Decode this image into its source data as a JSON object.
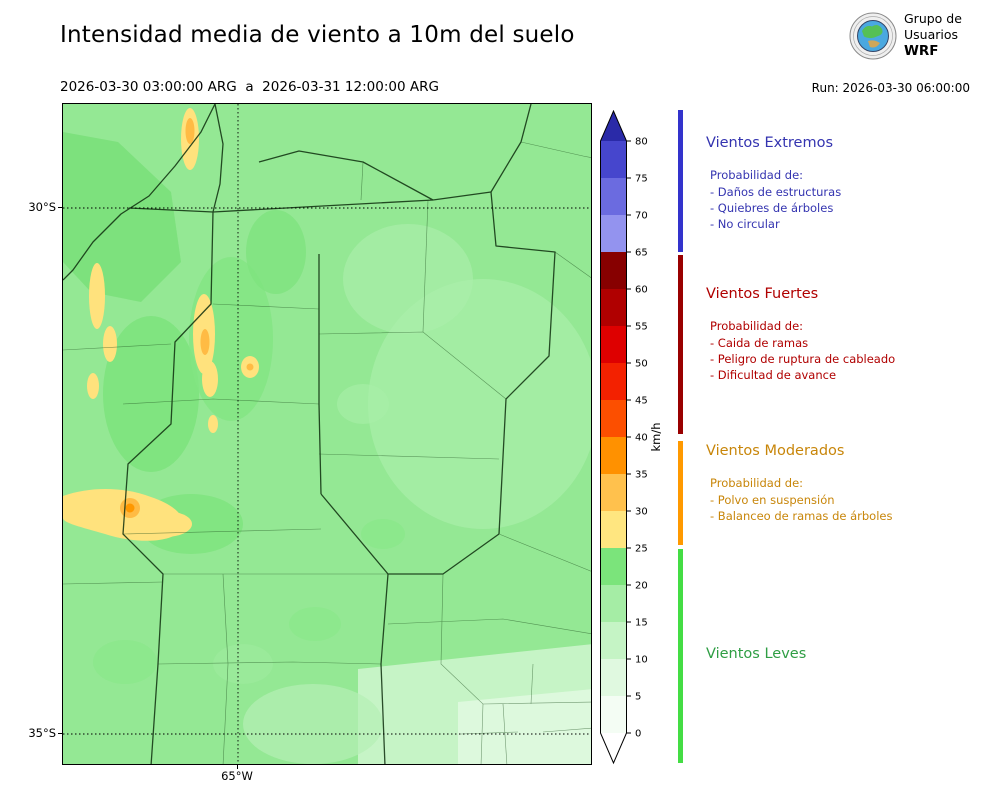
{
  "header": {
    "title": "Intensidad media de viento a 10m del suelo",
    "period": "2026-03-30 03:00:00 ARG  a  2026-03-31 12:00:00 ARG",
    "run": "Run: 2026-03-30 06:00:00",
    "logo": {
      "line1": "Grupo de",
      "line2": "Usuarios",
      "line3": "WRF"
    }
  },
  "map": {
    "lat_label_top": "30°S",
    "lat_label_bottom": "35°S",
    "lon_label": "65°W"
  },
  "colorbar": {
    "unit": "km/h",
    "max": 80,
    "step": 5,
    "ticks": [
      0,
      5,
      10,
      15,
      20,
      25,
      30,
      35,
      40,
      45,
      50,
      55,
      60,
      65,
      70,
      75,
      80
    ],
    "extend_above_color": "#2a2aa8",
    "extend_below_color": "#ffffff",
    "segments": [
      {
        "min": 0,
        "max": 5,
        "color": "#f4fdf4"
      },
      {
        "min": 5,
        "max": 10,
        "color": "#e0f9e0"
      },
      {
        "min": 10,
        "max": 15,
        "color": "#c5f4c5"
      },
      {
        "min": 15,
        "max": 20,
        "color": "#a5eda5"
      },
      {
        "min": 20,
        "max": 25,
        "color": "#7be47b"
      },
      {
        "min": 25,
        "max": 30,
        "color": "#ffe680"
      },
      {
        "min": 30,
        "max": 35,
        "color": "#ffc14d"
      },
      {
        "min": 35,
        "max": 40,
        "color": "#ff9100"
      },
      {
        "min": 40,
        "max": 45,
        "color": "#fc4f00"
      },
      {
        "min": 45,
        "max": 50,
        "color": "#f32100"
      },
      {
        "min": 50,
        "max": 55,
        "color": "#de0000"
      },
      {
        "min": 55,
        "max": 60,
        "color": "#b00000"
      },
      {
        "min": 60,
        "max": 65,
        "color": "#870000"
      },
      {
        "min": 65,
        "max": 70,
        "color": "#9393ef"
      },
      {
        "min": 70,
        "max": 75,
        "color": "#6b6be0"
      },
      {
        "min": 75,
        "max": 80,
        "color": "#4646cd"
      }
    ]
  },
  "legend": {
    "sections": [
      {
        "title": "Vientos Extremos",
        "text_color": "#3434b0",
        "bar_color": "#3333cc",
        "prob_label": "Probabilidad de:",
        "items": [
          "- Daños de estructuras",
          "- Quiebres de árboles",
          "- No circular"
        ]
      },
      {
        "title": "Vientos Fuertes",
        "text_color": "#b00000",
        "bar_color": "#990000",
        "prob_label": "Probabilidad de:",
        "items": [
          "- Caida de ramas",
          "- Peligro de ruptura de cableado",
          "- Dificultad de avance"
        ]
      },
      {
        "title": "Vientos Moderados",
        "text_color": "#c8860a",
        "bar_color": "#ff9900",
        "prob_label": "Probabilidad de:",
        "items": [
          "- Polvo en suspensión",
          "- Balanceo de ramas de árboles"
        ]
      },
      {
        "title": "Vientos Leves",
        "text_color": "#2f9e44",
        "bar_color": "#44dd44",
        "items": []
      }
    ]
  },
  "chart_data": {
    "type": "heatmap",
    "title": "Intensidad media de viento a 10m del suelo",
    "valid_period": "2026-03-30 03:00:00 ARG a 2026-03-31 12:00:00 ARG",
    "model_run": "Run: 2026-03-30 06:00:00",
    "units": "km/h",
    "value_range": [
      0,
      80
    ],
    "colorbar_ticks": [
      0,
      5,
      10,
      15,
      20,
      25,
      30,
      35,
      40,
      45,
      50,
      55,
      60,
      65,
      70,
      75,
      80
    ],
    "colorbar_extend": "both",
    "lat_gridlines": [
      "30°S",
      "35°S"
    ],
    "lon_gridlines": [
      "65°W"
    ],
    "wind_categories": [
      {
        "name": "Vientos Leves",
        "range_kmh": [
          0,
          25
        ]
      },
      {
        "name": "Vientos Moderados",
        "range_kmh": [
          25,
          40
        ]
      },
      {
        "name": "Vientos Fuertes",
        "range_kmh": [
          40,
          65
        ]
      },
      {
        "name": "Vientos Extremos",
        "range_kmh": [
          65,
          80
        ]
      }
    ],
    "field_description": "Predominantly 10-25 km/h (light winds) over the mapped central-Argentina domain; localized 25-40 km/h (moderate) patches along the western sierra ridges and in the southwest; no areas above 40 km/h."
  }
}
